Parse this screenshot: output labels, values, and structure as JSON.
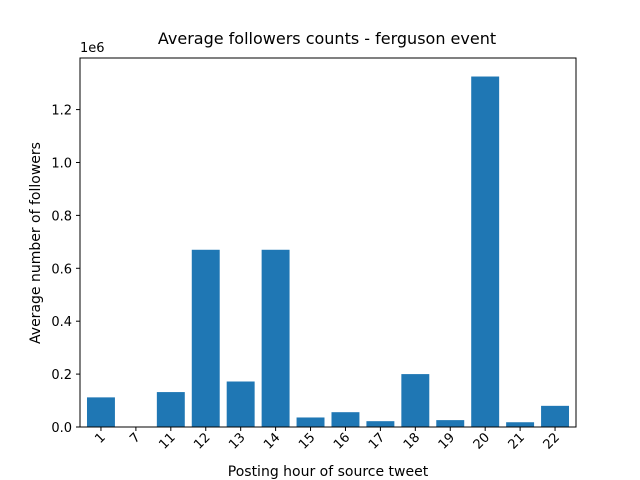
{
  "chart_data": {
    "type": "bar",
    "title": "Average followers counts - ferguson event",
    "xlabel": "Posting hour of source tweet",
    "ylabel": "Average number of followers",
    "offset_label": "1e6",
    "categories": [
      "1",
      "7",
      "11",
      "12",
      "13",
      "14",
      "15",
      "16",
      "17",
      "18",
      "19",
      "20",
      "21",
      "22"
    ],
    "values": [
      112000,
      0,
      132000,
      670000,
      172000,
      670000,
      36000,
      56000,
      22000,
      200000,
      26000,
      1325000,
      18000,
      80000
    ],
    "ylim": [
      0,
      1395000
    ],
    "yticks": [
      {
        "value": 0,
        "label": "0.0"
      },
      {
        "value": 200000,
        "label": "0.2"
      },
      {
        "value": 400000,
        "label": "0.4"
      },
      {
        "value": 600000,
        "label": "0.6"
      },
      {
        "value": 800000,
        "label": "0.8"
      },
      {
        "value": 1000000,
        "label": "1.0"
      },
      {
        "value": 1200000,
        "label": "1.2"
      }
    ],
    "bar_color": "#1f77b4",
    "grid": false,
    "xtick_rotation": "45"
  }
}
